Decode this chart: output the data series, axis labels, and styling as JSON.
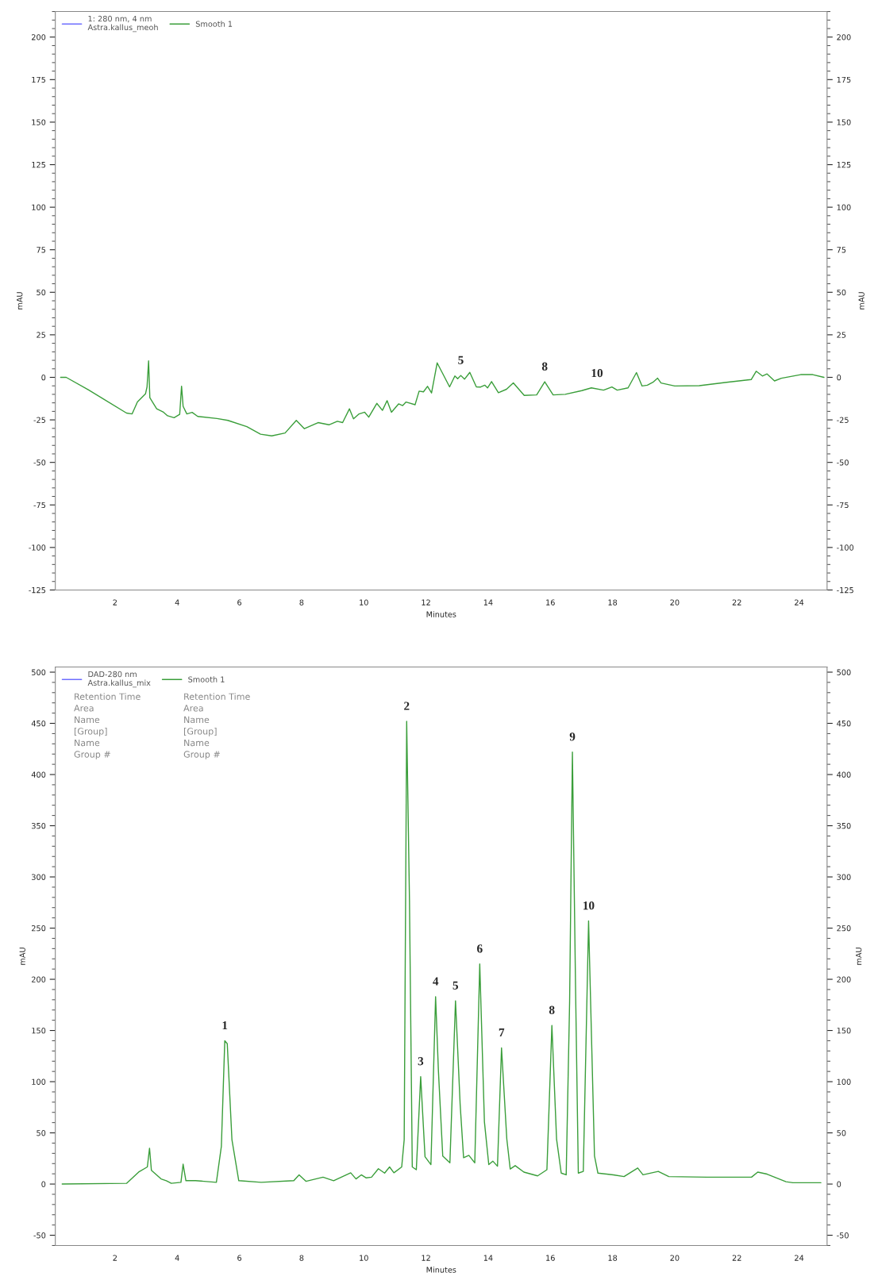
{
  "chart_data": [
    {
      "type": "line",
      "xlabel": "Minutes",
      "ylabel": "mAU",
      "y2label": "mAU",
      "xlim": [
        0.08,
        24.9
      ],
      "xticks": [
        2,
        4,
        6,
        8,
        10,
        12,
        14,
        16,
        18,
        20,
        22,
        24
      ],
      "ylim": [
        -125,
        215
      ],
      "yticks": [
        -125,
        -100,
        -75,
        -50,
        -25,
        0,
        25,
        50,
        75,
        100,
        125,
        150,
        175,
        200
      ],
      "y2lim": [
        -125,
        215
      ],
      "y2ticks": [
        -125,
        -100,
        -75,
        -50,
        -25,
        0,
        25,
        50,
        75,
        100,
        125,
        150,
        175,
        200
      ],
      "legend": "top left",
      "series": [
        {
          "name": "1: 280 nm, 4 nm\nAstra.kallus_meoh",
          "color": "#6f6fff"
        },
        {
          "name": "Smooth 1",
          "color": "#3a9e3a",
          "x": [
            0.25,
            0.43,
            1.14,
            2.37,
            2.55,
            2.72,
            2.98,
            3.03,
            3.08,
            3.12,
            3.34,
            3.56,
            3.69,
            3.9,
            4.08,
            4.14,
            4.19,
            4.31,
            4.48,
            4.66,
            5.28,
            5.63,
            6.24,
            6.68,
            7.04,
            7.47,
            7.83,
            8.09,
            8.53,
            8.88,
            9.15,
            9.32,
            9.54,
            9.67,
            9.85,
            10.03,
            10.16,
            10.42,
            10.6,
            10.75,
            10.89,
            11.12,
            11.25,
            11.36,
            11.65,
            11.78,
            11.92,
            12.05,
            12.18,
            12.36,
            12.76,
            12.93,
            13.02,
            13.12,
            13.24,
            13.41,
            13.62,
            13.76,
            13.89,
            13.98,
            14.11,
            14.33,
            14.59,
            14.81,
            15.16,
            15.56,
            15.82,
            16.09,
            16.48,
            17.01,
            17.32,
            17.71,
            17.98,
            18.15,
            18.5,
            18.77,
            18.95,
            19.12,
            19.3,
            19.45,
            19.56,
            20.0,
            20.79,
            21.67,
            22.46,
            22.62,
            22.82,
            22.97,
            23.21,
            23.43,
            24.05,
            24.44,
            24.8
          ],
          "values": [
            0,
            0,
            -7.3,
            -21,
            -21.5,
            -14.5,
            -9.7,
            -5.6,
            9.7,
            -12,
            -18.5,
            -20.5,
            -22.6,
            -23.7,
            -21.8,
            -5.2,
            -17,
            -21.5,
            -20.6,
            -23,
            -24.2,
            -25.3,
            -29,
            -33.4,
            -34.4,
            -32.7,
            -25.3,
            -30.2,
            -26.6,
            -27.9,
            -25.8,
            -26.6,
            -18.5,
            -24.4,
            -21.5,
            -20.5,
            -23.4,
            -15.3,
            -19.4,
            -13.7,
            -20.5,
            -15.6,
            -16.6,
            -14.5,
            -16.1,
            -8.1,
            -8.5,
            -5.3,
            -9.2,
            8.5,
            -5.6,
            0.8,
            -0.8,
            1.1,
            -1.1,
            2.9,
            -5.6,
            -5.7,
            -4.6,
            -6.2,
            -2.5,
            -9,
            -7,
            -3.3,
            -10.6,
            -10.3,
            -2.6,
            -10.3,
            -10,
            -7.8,
            -6.2,
            -7.5,
            -5.7,
            -7.5,
            -6.2,
            2.8,
            -5.1,
            -4.6,
            -2.9,
            -0.5,
            -3.3,
            -5.1,
            -4.9,
            -2.9,
            -1.3,
            3.6,
            0.8,
            2,
            -2.1,
            -0.5,
            1.6,
            1.6,
            0
          ]
        }
      ],
      "annotations": [
        {
          "text": "5",
          "x": 13.12,
          "y": 1.1
        },
        {
          "text": "8",
          "x": 15.82,
          "y": -2.6
        },
        {
          "text": "10",
          "x": 17.5,
          "y": -6.5
        }
      ]
    },
    {
      "type": "line",
      "xlabel": "Minutes",
      "ylabel": "mAU",
      "y2label": "mAU",
      "xlim": [
        0.08,
        24.9
      ],
      "xticks": [
        2,
        4,
        6,
        8,
        10,
        12,
        14,
        16,
        18,
        20,
        22,
        24
      ],
      "ylim": [
        -60,
        505
      ],
      "yticks": [
        -50,
        0,
        50,
        100,
        150,
        200,
        250,
        300,
        350,
        400,
        450,
        500
      ],
      "y2lim": [
        -60,
        505
      ],
      "y2ticks": [
        -50,
        0,
        50,
        100,
        150,
        200,
        250,
        300,
        350,
        400,
        450,
        500
      ],
      "legend": "top left",
      "series": [
        {
          "name": "DAD-280 nm\nAstra.kallus_mix",
          "color": "#6f6fff"
        },
        {
          "name": "Smooth 1",
          "color": "#3a9e3a",
          "x": [
            0.3,
            2.37,
            2.76,
            3.04,
            3.11,
            3.17,
            3.48,
            3.65,
            3.81,
            4.12,
            4.19,
            4.28,
            4.59,
            5.26,
            5.42,
            5.53,
            5.61,
            5.76,
            5.98,
            6.7,
            7.75,
            7.92,
            8.14,
            8.69,
            9.03,
            9.58,
            9.75,
            9.92,
            10.08,
            10.25,
            10.47,
            10.67,
            10.83,
            10.97,
            11.22,
            11.3,
            11.38,
            11.47,
            11.56,
            11.69,
            11.83,
            11.97,
            12.16,
            12.31,
            12.4,
            12.54,
            12.77,
            12.95,
            13.1,
            13.21,
            13.38,
            13.57,
            13.73,
            13.88,
            14.02,
            14.15,
            14.3,
            14.43,
            14.6,
            14.71,
            14.87,
            15.15,
            15.59,
            15.89,
            16.05,
            16.2,
            16.35,
            16.51,
            16.62,
            16.71,
            16.81,
            16.9,
            17.06,
            17.23,
            17.42,
            17.53,
            18.03,
            18.37,
            18.81,
            18.98,
            19.47,
            19.81,
            21.03,
            22.47,
            22.67,
            22.97,
            23.58,
            23.8,
            24.7
          ],
          "values": [
            0,
            0.7,
            11.7,
            16.7,
            35,
            13.4,
            5,
            3.3,
            0.7,
            1.7,
            19.4,
            3.3,
            3.3,
            1.7,
            36.7,
            140,
            137,
            43.4,
            3.3,
            1.7,
            3.3,
            9,
            2.7,
            6.7,
            3.3,
            11,
            5,
            9,
            6,
            6.7,
            15,
            10.7,
            16.7,
            11,
            16.7,
            43.4,
            452,
            277,
            16.7,
            14,
            105,
            26.7,
            19,
            183,
            111,
            27.4,
            20.7,
            179,
            77.5,
            25.7,
            28,
            20.7,
            215,
            60.8,
            19,
            22.4,
            17.4,
            133,
            44,
            14.7,
            18,
            11.7,
            8,
            14,
            155,
            44,
            10.7,
            9,
            178,
            422,
            194,
            10.7,
            12.4,
            257,
            27.4,
            10.7,
            9,
            7.3,
            15.7,
            9,
            12.4,
            7.3,
            6.7,
            6.7,
            11.7,
            9.7,
            2.3,
            1.3,
            1.3
          ]
        }
      ],
      "annotations": [
        "Retention Time\nArea\nName\n[Group]\nName\nGroup #",
        "Retention Time\nArea\nName\n[Group]\nName\nGroup #",
        {
          "text": "1",
          "x": 5.53,
          "y": 140
        },
        {
          "text": "2",
          "x": 11.38,
          "y": 452
        },
        {
          "text": "3",
          "x": 11.83,
          "y": 105
        },
        {
          "text": "4",
          "x": 12.31,
          "y": 183
        },
        {
          "text": "5",
          "x": 12.95,
          "y": 179
        },
        {
          "text": "6",
          "x": 13.73,
          "y": 215
        },
        {
          "text": "7",
          "x": 14.43,
          "y": 133
        },
        {
          "text": "8",
          "x": 16.05,
          "y": 155
        },
        {
          "text": "9",
          "x": 16.71,
          "y": 422
        },
        {
          "text": "10",
          "x": 17.23,
          "y": 257
        }
      ]
    }
  ]
}
